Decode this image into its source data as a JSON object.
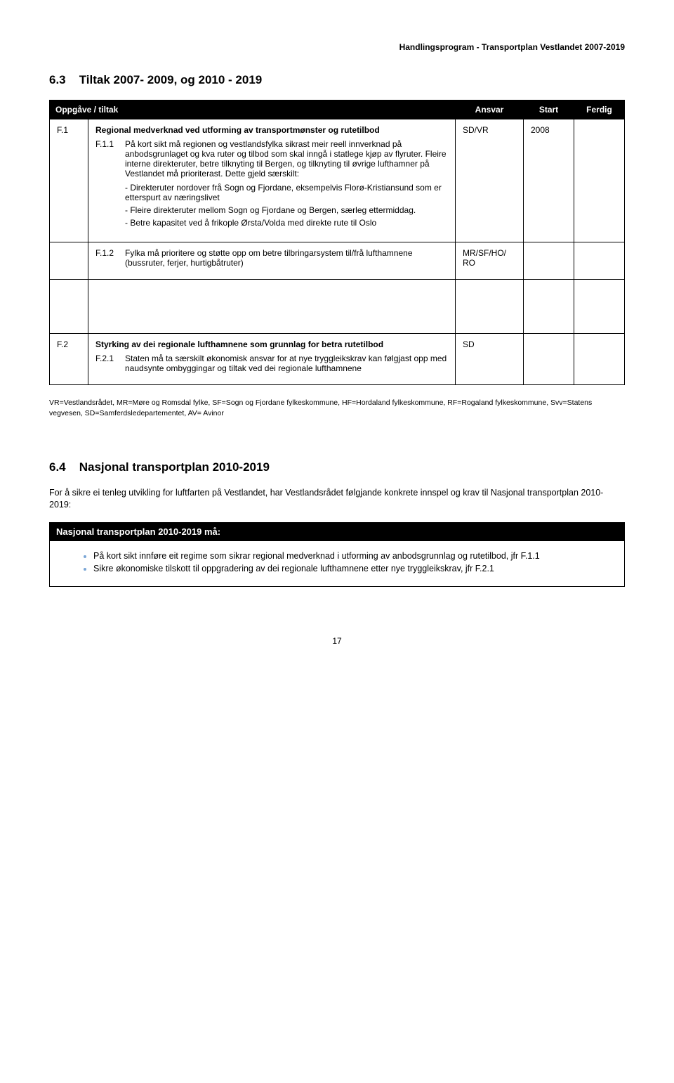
{
  "header": {
    "docTitle": "Handlingsprogram - Transportplan Vestlandet 2007-2019"
  },
  "section63": {
    "number": "6.3",
    "title": "Tiltak  2007- 2009, og 2010 - 2019"
  },
  "tableHeader": {
    "oppgave": "Oppgåve / tiltak",
    "ansvar": "Ansvar",
    "start": "Start",
    "ferdig": "Ferdig"
  },
  "f1": {
    "id": "F.1",
    "title": "Regional medverknad ved utforming av transportmønster og rutetilbod",
    "f11_id": "F.1.1",
    "f11_text": "På kort sikt må regionen og vestlandsfylka sikrast meir reell innverknad på anbodsgrunlaget og kva ruter og tilbod som skal inngå i statlege kjøp av flyruter. Fleire interne direkteruter, betre tilknyting til Bergen, og tilknyting til øvrige lufthamner på Vestlandet må prioriterast. Dette gjeld særskilt:",
    "f11_b1": "- Direkteruter nordover frå Sogn og Fjordane, eksempelvis Florø-Kristiansund som er etterspurt av næringslivet",
    "f11_b2": "- Fleire direkteruter mellom Sogn og Fjordane og Bergen, særleg ettermiddag.",
    "f11_b3": "- Betre kapasitet ved å frikople Ørsta/Volda med direkte rute til Oslo",
    "f11_ansvar": "SD/VR",
    "f11_start": "2008",
    "f12_id": "F.1.2",
    "f12_text": "Fylka må prioritere og støtte opp om betre tilbringarsystem til/frå lufthamnene (bussruter, ferjer, hurtigbåtruter)",
    "f12_ansvar": "MR/SF/HO/\nRO"
  },
  "f2": {
    "id": "F.2",
    "title": "Styrking av dei regionale lufthamnene som grunnlag for betra rutetilbod",
    "f21_id": "F.2.1",
    "f21_text": "Staten må ta særskilt økonomisk ansvar for at nye tryggleikskrav kan følgjast opp med naudsynte ombyggingar og tiltak ved dei regionale lufthamnene",
    "f21_ansvar": "SD"
  },
  "abbrev": "VR=Vestlandsrådet, MR=Møre og Romsdal fylke, SF=Sogn og Fjordane fylkeskommune, HF=Hordaland fylkeskommune, RF=Rogaland fylkeskommune, Svv=Statens vegvesen, SD=Samferdsledepartementet, AV= Avinor",
  "section64": {
    "number": "6.4",
    "title": "Nasjonal transportplan 2010-2019",
    "para": "For å sikre ei tenleg utvikling for luftfarten på Vestlandet, har Vestlandsrådet følgjande konkrete innspel og krav til Nasjonal transportplan 2010-2019:",
    "barTitle": "Nasjonal transportplan 2010-2019 må:",
    "bullets": [
      "På kort sikt innføre eit regime som sikrar regional medverknad i utforming av anbodsgrunnlag og rutetilbod, jfr F.1.1",
      "Sikre økonomiske tilskott til oppgradering av dei regionale lufthamnene etter nye tryggleikskrav, jfr F.2.1"
    ]
  },
  "pageNumber": "17"
}
